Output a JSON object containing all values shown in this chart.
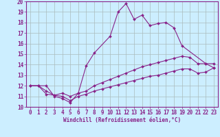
{
  "xlabel": "Windchill (Refroidissement éolien,°C)",
  "bg_color": "#cceeff",
  "line_color": "#882288",
  "grid_color": "#aabbbb",
  "xlim": [
    -0.5,
    23.5
  ],
  "ylim": [
    10,
    20
  ],
  "xticks": [
    0,
    1,
    2,
    3,
    4,
    5,
    6,
    7,
    8,
    9,
    10,
    11,
    12,
    13,
    14,
    15,
    16,
    17,
    18,
    19,
    20,
    21,
    22,
    23
  ],
  "yticks": [
    10,
    11,
    12,
    13,
    14,
    15,
    16,
    17,
    18,
    19,
    20
  ],
  "line1_x": [
    0,
    1,
    2,
    3,
    4,
    5,
    6,
    7,
    8,
    10,
    11,
    12,
    13,
    14,
    15,
    16,
    17,
    18,
    19,
    22,
    23
  ],
  "line1_y": [
    12.0,
    12.0,
    12.0,
    11.0,
    10.8,
    10.4,
    11.3,
    13.9,
    15.1,
    16.7,
    19.0,
    19.8,
    18.3,
    18.7,
    17.7,
    17.9,
    18.0,
    17.5,
    15.8,
    14.1,
    14.1
  ],
  "line2_x": [
    0,
    1,
    2,
    3,
    4,
    5,
    6,
    7,
    8,
    9,
    10,
    11,
    12,
    13,
    14,
    15,
    16,
    17,
    18,
    19,
    20,
    21,
    22,
    23
  ],
  "line2_y": [
    12.0,
    12.0,
    11.2,
    11.1,
    11.3,
    11.0,
    11.3,
    11.5,
    12.0,
    12.3,
    12.6,
    12.9,
    13.2,
    13.5,
    13.8,
    14.0,
    14.2,
    14.4,
    14.6,
    14.8,
    14.7,
    14.1,
    14.1,
    13.7
  ],
  "line3_x": [
    0,
    1,
    2,
    3,
    4,
    5,
    6,
    7,
    8,
    9,
    10,
    11,
    12,
    13,
    14,
    15,
    16,
    17,
    18,
    19,
    20,
    21,
    22,
    23
  ],
  "line3_y": [
    12.0,
    12.0,
    11.5,
    11.1,
    11.0,
    10.6,
    11.0,
    11.2,
    11.5,
    11.7,
    11.9,
    12.1,
    12.3,
    12.5,
    12.7,
    12.9,
    13.0,
    13.2,
    13.4,
    13.6,
    13.6,
    13.2,
    13.3,
    13.7
  ]
}
